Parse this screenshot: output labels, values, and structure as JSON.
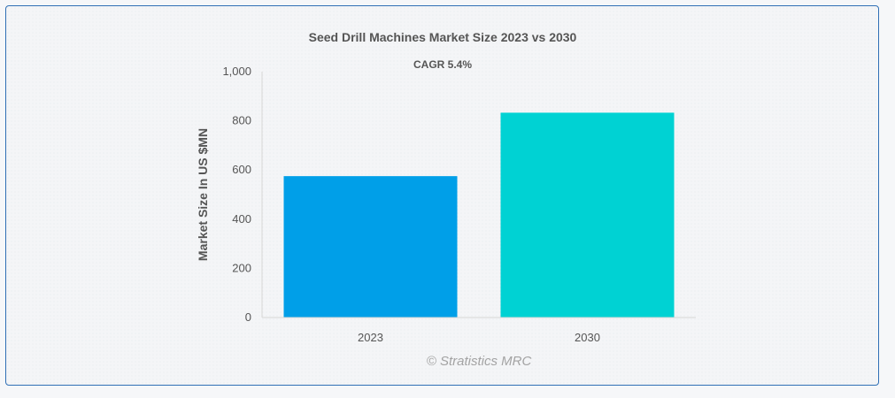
{
  "chart_data": {
    "type": "bar",
    "title": "Seed Drill Machines Market Size 2023 vs 2030",
    "subtitle": "CAGR 5.4%",
    "xlabel": "",
    "ylabel": "Market Size In US $MN",
    "categories": [
      "2023",
      "2030"
    ],
    "values": [
      575,
      833
    ],
    "colors": [
      "#009fe8",
      "#00d2d3"
    ],
    "ylim": [
      0,
      1000
    ],
    "yticks": [
      0,
      200,
      400,
      600,
      800,
      1000
    ],
    "ytick_labels": [
      "0",
      "200",
      "400",
      "600",
      "800",
      "1,000"
    ],
    "grid": false,
    "legend": "none"
  },
  "watermark": "© Stratistics MRC"
}
